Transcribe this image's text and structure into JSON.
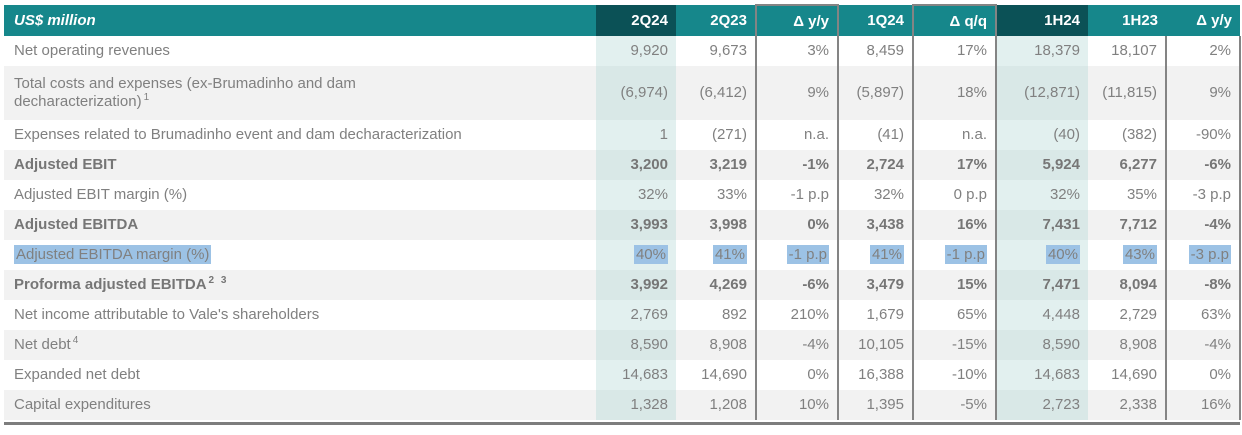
{
  "colors": {
    "header_teal": "#16878b",
    "header_teal_dark": "#0b5156",
    "column_tint_on_white": "#e2f0ef",
    "column_tint_on_gray": "#d9e8e7",
    "row_stripe_gray": "#f2f2f2",
    "text_gray": "#808080",
    "highlight_blue": "#9cc2e5",
    "border_gray": "#848484",
    "bottom_bar_gray": "#7d7d7d"
  },
  "table": {
    "title": "US$ million",
    "columns": [
      "2Q24",
      "2Q23",
      "Δ y/y",
      "1Q24",
      "Δ q/q",
      "1H24",
      "1H23",
      "Δ y/y"
    ],
    "rows": [
      {
        "label": "Net operating revenues",
        "values": [
          "9,920",
          "9,673",
          "3%",
          "8,459",
          "17%",
          "18,379",
          "18,107",
          "2%"
        ]
      },
      {
        "label": "Total costs and expenses (ex-Brumadinho and dam",
        "label2": "decharacterization)",
        "sup": "1",
        "tall": true,
        "values": [
          "(6,974)",
          "(6,412)",
          "9%",
          "(5,897)",
          "18%",
          "(12,871)",
          "(11,815)",
          "9%"
        ]
      },
      {
        "label": "Expenses related to Brumadinho event and dam decharacterization",
        "values": [
          "1",
          "(271)",
          "n.a.",
          "(41)",
          "n.a.",
          "(40)",
          "(382)",
          "-90%"
        ]
      },
      {
        "label": "Adjusted EBIT",
        "bold": true,
        "values": [
          "3,200",
          "3,219",
          "-1%",
          "2,724",
          "17%",
          "5,924",
          "6,277",
          "-6%"
        ]
      },
      {
        "label": "Adjusted EBIT margin (%)",
        "values": [
          "32%",
          "33%",
          "-1 p.p",
          "32%",
          "0 p.p",
          "32%",
          "35%",
          "-3 p.p"
        ]
      },
      {
        "label": "Adjusted EBITDA",
        "bold": true,
        "values": [
          "3,993",
          "3,998",
          "0%",
          "3,438",
          "16%",
          "7,431",
          "7,712",
          "-4%"
        ]
      },
      {
        "label": "Adjusted EBITDA margin (%)",
        "highlighted": true,
        "values": [
          "40%",
          "41%",
          "-1 p.p",
          "41%",
          "-1 p.p",
          "40%",
          "43%",
          "-3 p.p"
        ]
      },
      {
        "label": "Proforma adjusted EBITDA",
        "sup": "2 3",
        "bold": true,
        "values": [
          "3,992",
          "4,269",
          "-6%",
          "3,479",
          "15%",
          "7,471",
          "8,094",
          "-8%"
        ]
      },
      {
        "label": "Net income attributable to Vale's shareholders",
        "values": [
          "2,769",
          "892",
          "210%",
          "1,679",
          "65%",
          "4,448",
          "2,729",
          "63%"
        ]
      },
      {
        "label": "Net debt",
        "sup": "4",
        "values": [
          "8,590",
          "8,908",
          "-4%",
          "10,105",
          "-15%",
          "8,590",
          "8,908",
          "-4%"
        ]
      },
      {
        "label": "Expanded net debt",
        "values": [
          "14,683",
          "14,690",
          "0%",
          "16,388",
          "-10%",
          "14,683",
          "14,690",
          "0%"
        ]
      },
      {
        "label": "Capital expenditures",
        "values": [
          "1,328",
          "1,208",
          "10%",
          "1,395",
          "-5%",
          "2,723",
          "2,338",
          "16%"
        ]
      }
    ]
  },
  "chart_data": {
    "type": "table",
    "title": "US$ million",
    "columns": [
      "2Q24",
      "2Q23",
      "Δ y/y",
      "1Q24",
      "Δ q/q",
      "1H24",
      "1H23",
      "Δ y/y"
    ],
    "rows": [
      [
        "Net operating revenues",
        "9,920",
        "9,673",
        "3%",
        "8,459",
        "17%",
        "18,379",
        "18,107",
        "2%"
      ],
      [
        "Total costs and expenses (ex-Brumadinho and dam decharacterization) 1",
        "(6,974)",
        "(6,412)",
        "9%",
        "(5,897)",
        "18%",
        "(12,871)",
        "(11,815)",
        "9%"
      ],
      [
        "Expenses related to Brumadinho event and dam decharacterization",
        "1",
        "(271)",
        "n.a.",
        "(41)",
        "n.a.",
        "(40)",
        "(382)",
        "-90%"
      ],
      [
        "Adjusted EBIT",
        "3,200",
        "3,219",
        "-1%",
        "2,724",
        "17%",
        "5,924",
        "6,277",
        "-6%"
      ],
      [
        "Adjusted EBIT margin (%)",
        "32%",
        "33%",
        "-1 p.p",
        "32%",
        "0 p.p",
        "32%",
        "35%",
        "-3 p.p"
      ],
      [
        "Adjusted EBITDA",
        "3,993",
        "3,998",
        "0%",
        "3,438",
        "16%",
        "7,431",
        "7,712",
        "-4%"
      ],
      [
        "Adjusted EBITDA margin (%)",
        "40%",
        "41%",
        "-1 p.p",
        "41%",
        "-1 p.p",
        "40%",
        "43%",
        "-3 p.p"
      ],
      [
        "Proforma adjusted EBITDA 2 3",
        "3,992",
        "4,269",
        "-6%",
        "3,479",
        "15%",
        "7,471",
        "8,094",
        "-8%"
      ],
      [
        "Net income attributable to Vale's shareholders",
        "2,769",
        "892",
        "210%",
        "1,679",
        "65%",
        "4,448",
        "2,729",
        "63%"
      ],
      [
        "Net debt 4",
        "8,590",
        "8,908",
        "-4%",
        "10,105",
        "-15%",
        "8,590",
        "8,908",
        "-4%"
      ],
      [
        "Expanded net debt",
        "14,683",
        "14,690",
        "0%",
        "16,388",
        "-10%",
        "14,683",
        "14,690",
        "0%"
      ],
      [
        "Capital expenditures",
        "1,328",
        "1,208",
        "10%",
        "1,395",
        "-5%",
        "2,723",
        "2,338",
        "16%"
      ]
    ]
  }
}
